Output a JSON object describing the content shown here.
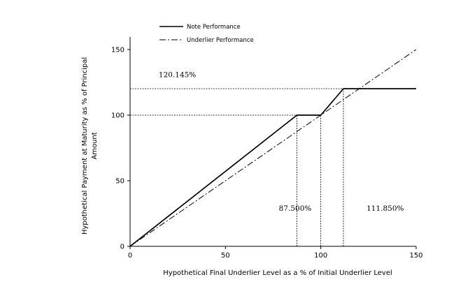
{
  "chart_data": {
    "type": "line",
    "xlabel": "Hypothetical Final Underlier Level as a % of Initial Underlier Level",
    "ylabel_lines": [
      "Hypothetical Payment at Maturity as % of Principal",
      "Amount"
    ],
    "xlim": [
      0,
      150
    ],
    "ylim": [
      0,
      150
    ],
    "x_ticks": [
      0,
      50,
      100,
      150
    ],
    "y_ticks": [
      0,
      50,
      100,
      150
    ],
    "grid": false,
    "legend_position": "top-left",
    "series": [
      {
        "name": "Note Performance",
        "style": "solid",
        "color": "#000000",
        "points": [
          [
            0,
            0
          ],
          [
            87.5,
            100
          ],
          [
            100,
            100
          ],
          [
            111.85,
            120.145
          ],
          [
            150,
            120.145
          ]
        ]
      },
      {
        "name": "Underlier Performance",
        "style": "dashed",
        "color": "#000000",
        "points": [
          [
            0,
            0
          ],
          [
            150,
            150
          ]
        ]
      }
    ],
    "reference_lines": {
      "horizontal": [
        100,
        120.145
      ],
      "vertical": [
        87.5,
        100,
        111.85
      ]
    },
    "annotations": [
      {
        "text": "120.145%",
        "x": 15,
        "y": 129
      },
      {
        "text": "87.500%",
        "x": 78,
        "y": 27
      },
      {
        "text": "111.850%",
        "x": 124,
        "y": 27
      }
    ]
  }
}
